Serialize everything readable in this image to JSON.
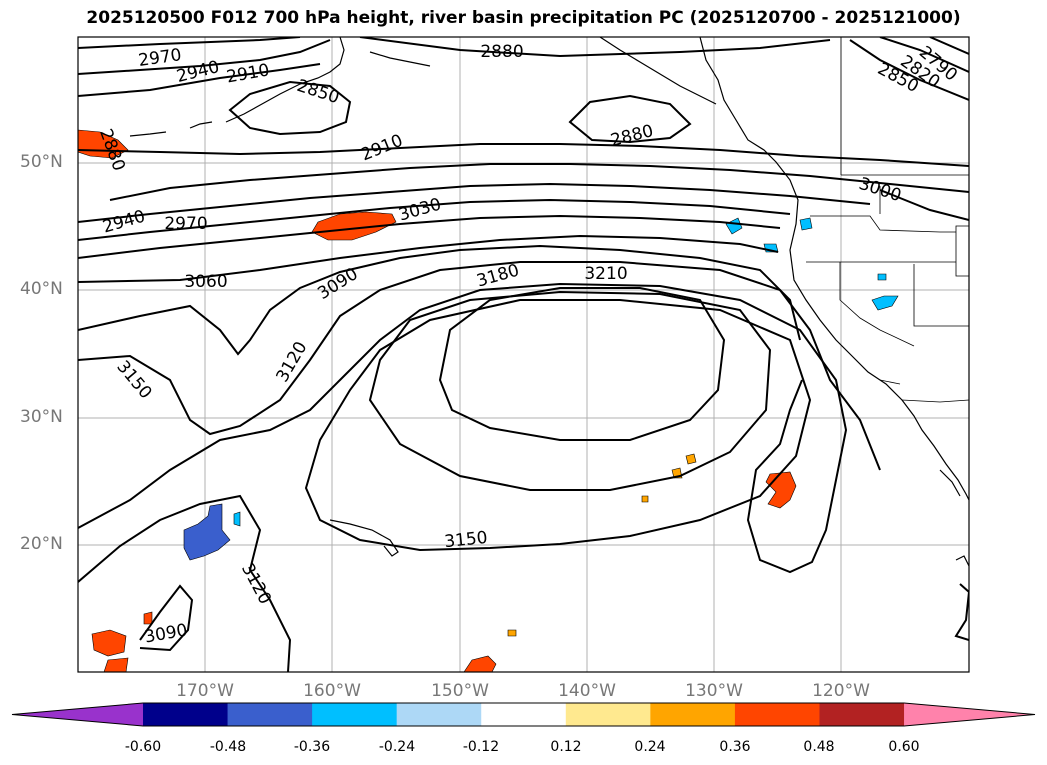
{
  "title": "2025120500 F012 700 hPa height, river basin precipitation PC (2025120700 - 2025121000)",
  "lat_labels": [
    "50°N",
    "40°N",
    "30°N",
    "20°N"
  ],
  "lon_labels": [
    "170°W",
    "160°W",
    "150°W",
    "140°W",
    "130°W",
    "120°W"
  ],
  "contour_labels": [
    "2970",
    "2940",
    "2910",
    "2850",
    "2880",
    "2880",
    "2790",
    "2820",
    "2850",
    "2910",
    "3000",
    "2880",
    "2940",
    "2970",
    "3030",
    "3060",
    "3090",
    "3180",
    "3210",
    "3120",
    "3150",
    "3150",
    "3120",
    "3090"
  ],
  "colorbar": {
    "ticks": [
      "-0.60",
      "-0.48",
      "-0.36",
      "-0.24",
      "-0.12",
      "0.12",
      "0.24",
      "0.36",
      "0.48",
      "0.60"
    ],
    "colors": [
      "#9932cc",
      "#00008b",
      "#3a5fcd",
      "#00bfff",
      "#add8f6",
      "#ffffff",
      "#ffe98f",
      "#ffa500",
      "#ff4500",
      "#b22222",
      "#ff82ab"
    ]
  }
}
